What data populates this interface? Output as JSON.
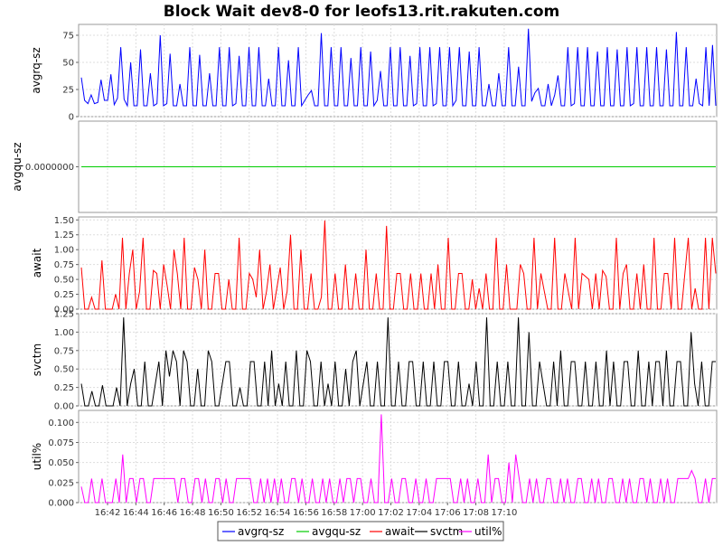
{
  "chart_data": {
    "type": "line",
    "title": "Block Wait dev8-0 for leofs13.rit.rakuten.com",
    "x_ticks": [
      "16:42",
      "16:44",
      "16:46",
      "16:48",
      "16:50",
      "16:52",
      "16:54",
      "16:56",
      "16:58",
      "17:00",
      "17:02",
      "17:04",
      "17:06",
      "17:08",
      "17:10"
    ],
    "legend_placement": "bottom-center",
    "grid": true,
    "legend": [
      {
        "name": "avgrq-sz",
        "color": "#0000ff"
      },
      {
        "name": "avgqu-sz",
        "color": "#00cc00"
      },
      {
        "name": "await",
        "color": "#ff0000"
      },
      {
        "name": "svctm",
        "color": "#000000"
      },
      {
        "name": "util%",
        "color": "#ff00ff"
      }
    ],
    "panels": [
      {
        "ylabel": "avgrq-sz",
        "color": "#0000ff",
        "ylim": [
          0,
          85
        ],
        "ticks": [
          {
            "v": 0,
            "label": "0"
          },
          {
            "v": 25,
            "label": "25"
          },
          {
            "v": 50,
            "label": "50"
          },
          {
            "v": 75,
            "label": "75"
          }
        ],
        "values": [
          36,
          15,
          12,
          20,
          12,
          13,
          34,
          15,
          15,
          39,
          11,
          17,
          64,
          16,
          10,
          50,
          10,
          10,
          62,
          10,
          10,
          40,
          10,
          12,
          75,
          10,
          12,
          58,
          10,
          10,
          30,
          10,
          10,
          64,
          10,
          10,
          57,
          10,
          10,
          40,
          10,
          10,
          64,
          10,
          10,
          64,
          10,
          12,
          56,
          10,
          10,
          64,
          10,
          10,
          64,
          10,
          10,
          35,
          10,
          10,
          64,
          10,
          10,
          52,
          10,
          10,
          64,
          10,
          15,
          20,
          24,
          10,
          10,
          77,
          10,
          10,
          64,
          10,
          10,
          64,
          10,
          10,
          54,
          10,
          10,
          64,
          10,
          10,
          60,
          10,
          15,
          42,
          10,
          10,
          64,
          10,
          10,
          64,
          10,
          10,
          56,
          10,
          12,
          64,
          10,
          10,
          64,
          10,
          12,
          64,
          10,
          10,
          64,
          10,
          15,
          64,
          10,
          10,
          60,
          10,
          10,
          64,
          10,
          10,
          30,
          10,
          10,
          40,
          10,
          10,
          64,
          10,
          10,
          46,
          10,
          10,
          81,
          14,
          22,
          26,
          10,
          10,
          30,
          10,
          20,
          38,
          10,
          10,
          64,
          10,
          12,
          64,
          10,
          10,
          64,
          10,
          10,
          60,
          10,
          10,
          64,
          10,
          10,
          62,
          10,
          10,
          64,
          10,
          12,
          64,
          10,
          10,
          64,
          10,
          10,
          64,
          10,
          10,
          62,
          10,
          10,
          78,
          10,
          10,
          64,
          10,
          10,
          35,
          12,
          10,
          64,
          10,
          66,
          10
        ],
        "label_offset": 55
      },
      {
        "ylabel": "avgqu-sz",
        "color": "#00cc00",
        "ylim": [
          -1,
          1
        ],
        "ticks": [
          {
            "v": 0,
            "label": "0.0000000"
          }
        ],
        "values": [
          0,
          0
        ],
        "label_offset": 76
      },
      {
        "ylabel": "await",
        "color": "#ff0000",
        "ylim": [
          0,
          1.55
        ],
        "ticks": [
          {
            "v": 0,
            "label": "0.00"
          },
          {
            "v": 0.25,
            "label": "0.25"
          },
          {
            "v": 0.5,
            "label": "0.50"
          },
          {
            "v": 0.75,
            "label": "0.75"
          },
          {
            "v": 1.0,
            "label": "1.00"
          },
          {
            "v": 1.25,
            "label": "1.25"
          },
          {
            "v": 1.5,
            "label": "1.50"
          }
        ],
        "values": [
          0.7,
          0.0,
          0.0,
          0.2,
          0.0,
          0.0,
          0.82,
          0.0,
          0.0,
          0.0,
          0.25,
          0.0,
          1.2,
          0.0,
          0.6,
          1.0,
          0.0,
          0.3,
          1.2,
          0.0,
          0.0,
          0.65,
          0.6,
          0.0,
          0.75,
          0.4,
          0.0,
          1.0,
          0.6,
          0.0,
          1.2,
          0.0,
          0.0,
          0.7,
          0.5,
          0.0,
          1.0,
          0.0,
          0.0,
          0.6,
          0.6,
          0.0,
          0.0,
          0.5,
          0.0,
          0.0,
          1.2,
          0.0,
          0.0,
          0.6,
          0.5,
          0.2,
          1.0,
          0.0,
          0.3,
          0.75,
          0.0,
          0.35,
          0.7,
          0.0,
          0.3,
          1.25,
          0.0,
          0.0,
          1.0,
          0.0,
          0.0,
          0.6,
          0.0,
          0.0,
          0.2,
          1.49,
          0.0,
          0.0,
          0.6,
          0.0,
          0.0,
          0.75,
          0.0,
          0.0,
          0.6,
          0.0,
          0.0,
          1.0,
          0.0,
          0.0,
          0.6,
          0.0,
          0.0,
          1.4,
          0.0,
          0.0,
          0.6,
          0.6,
          0.0,
          0.0,
          0.6,
          0.0,
          0.0,
          0.6,
          0.0,
          0.0,
          0.6,
          0.0,
          0.75,
          0.0,
          0.0,
          1.2,
          0.0,
          0.0,
          0.6,
          0.6,
          0.0,
          0.0,
          0.5,
          0.0,
          0.35,
          0.0,
          0.6,
          0.0,
          0.0,
          1.2,
          0.0,
          0.0,
          0.75,
          0.0,
          0.0,
          0.0,
          0.75,
          0.6,
          0.0,
          0.0,
          1.2,
          0.0,
          0.6,
          0.3,
          0.0,
          0.0,
          1.2,
          0.0,
          0.0,
          0.6,
          0.3,
          0.0,
          1.2,
          0.0,
          0.6,
          0.55,
          0.5,
          0.0,
          0.6,
          0.0,
          0.65,
          0.55,
          0.0,
          0.0,
          1.2,
          0.0,
          0.6,
          0.75,
          0.0,
          0.0,
          0.6,
          0.0,
          0.75,
          0.0,
          0.0,
          1.2,
          0.0,
          0.0,
          0.6,
          0.6,
          0.0,
          1.2,
          0.0,
          0.0,
          0.6,
          1.2,
          0.0,
          0.35,
          0.0,
          0.0,
          1.2,
          0.0,
          1.2,
          0.6
        ],
        "label_offset": 54
      },
      {
        "ylabel": "svctm",
        "color": "#000000",
        "ylim": [
          0,
          1.25
        ],
        "ticks": [
          {
            "v": 0,
            "label": "0.00"
          },
          {
            "v": 0.25,
            "label": "0.25"
          },
          {
            "v": 0.5,
            "label": "0.50"
          },
          {
            "v": 0.75,
            "label": "0.75"
          },
          {
            "v": 1.0,
            "label": "1.00"
          },
          {
            "v": 1.25,
            "label": "1.25"
          }
        ],
        "values": [
          0.3,
          0.0,
          0.0,
          0.2,
          0.0,
          0.0,
          0.28,
          0.0,
          0.0,
          0.0,
          0.25,
          0.0,
          1.2,
          0.0,
          0.3,
          0.5,
          0.0,
          0.0,
          0.6,
          0.0,
          0.0,
          0.3,
          0.6,
          0.0,
          0.75,
          0.4,
          0.75,
          0.6,
          0.0,
          0.75,
          0.6,
          0.0,
          0.0,
          0.5,
          0.0,
          0.0,
          0.75,
          0.6,
          0.0,
          0.0,
          0.3,
          0.6,
          0.6,
          0.0,
          0.0,
          0.25,
          0.0,
          0.0,
          0.6,
          0.6,
          0.0,
          0.0,
          0.6,
          0.0,
          0.75,
          0.0,
          0.3,
          0.0,
          0.6,
          0.0,
          0.0,
          0.75,
          0.0,
          0.0,
          0.75,
          0.6,
          0.0,
          0.0,
          0.6,
          0.0,
          0.3,
          0.0,
          0.6,
          0.0,
          0.0,
          0.5,
          0.0,
          0.6,
          0.75,
          0.0,
          0.3,
          0.6,
          0.0,
          0.0,
          0.6,
          0.0,
          0.0,
          1.2,
          0.0,
          0.0,
          0.6,
          0.0,
          0.0,
          0.6,
          0.6,
          0.0,
          0.0,
          0.6,
          0.0,
          0.0,
          0.6,
          0.0,
          0.0,
          0.6,
          0.6,
          0.0,
          0.0,
          0.6,
          0.0,
          0.0,
          0.3,
          0.0,
          0.6,
          0.0,
          0.0,
          1.2,
          0.0,
          0.0,
          0.6,
          0.0,
          0.0,
          0.6,
          0.0,
          0.0,
          1.2,
          0.0,
          0.0,
          1.0,
          0.0,
          0.0,
          0.6,
          0.3,
          0.0,
          0.0,
          0.6,
          0.0,
          0.75,
          0.0,
          0.0,
          0.6,
          0.6,
          0.0,
          0.0,
          0.6,
          0.0,
          0.0,
          0.6,
          0.0,
          0.0,
          0.75,
          0.0,
          0.6,
          0.0,
          0.0,
          0.6,
          0.6,
          0.0,
          0.0,
          0.75,
          0.0,
          0.0,
          0.6,
          0.0,
          0.6,
          0.6,
          0.0,
          0.75,
          0.0,
          0.0,
          0.6,
          0.6,
          0.0,
          0.0,
          1.0,
          0.3,
          0.0,
          0.6,
          0.0,
          0.0,
          0.6,
          0.6
        ],
        "label_offset": 54
      },
      {
        "ylabel": "util%",
        "color": "#ff00ff",
        "ylim": [
          0,
          0.115
        ],
        "ticks": [
          {
            "v": 0,
            "label": "0.000"
          },
          {
            "v": 0.025,
            "label": "0.025"
          },
          {
            "v": 0.05,
            "label": "0.050"
          },
          {
            "v": 0.075,
            "label": "0.075"
          },
          {
            "v": 0.1,
            "label": "0.100"
          }
        ],
        "values": [
          0.02,
          0.0,
          0.0,
          0.03,
          0.0,
          0.0,
          0.03,
          0.0,
          0.0,
          0.0,
          0.03,
          0.0,
          0.06,
          0.0,
          0.03,
          0.03,
          0.0,
          0.03,
          0.03,
          0.0,
          0.0,
          0.03,
          0.03,
          0.03,
          0.03,
          0.03,
          0.03,
          0.03,
          0.0,
          0.03,
          0.03,
          0.0,
          0.0,
          0.03,
          0.03,
          0.0,
          0.03,
          0.0,
          0.0,
          0.03,
          0.03,
          0.0,
          0.03,
          0.0,
          0.0,
          0.03,
          0.03,
          0.03,
          0.03,
          0.03,
          0.0,
          0.0,
          0.03,
          0.0,
          0.03,
          0.0,
          0.03,
          0.0,
          0.03,
          0.0,
          0.0,
          0.03,
          0.03,
          0.0,
          0.03,
          0.0,
          0.0,
          0.03,
          0.0,
          0.0,
          0.03,
          0.0,
          0.03,
          0.0,
          0.0,
          0.03,
          0.0,
          0.03,
          0.03,
          0.0,
          0.03,
          0.03,
          0.0,
          0.0,
          0.03,
          0.0,
          0.0,
          0.11,
          0.0,
          0.0,
          0.03,
          0.0,
          0.0,
          0.03,
          0.03,
          0.0,
          0.0,
          0.03,
          0.0,
          0.0,
          0.03,
          0.0,
          0.0,
          0.03,
          0.03,
          0.03,
          0.03,
          0.03,
          0.0,
          0.0,
          0.03,
          0.0,
          0.03,
          0.0,
          0.0,
          0.03,
          0.0,
          0.0,
          0.06,
          0.0,
          0.03,
          0.03,
          0.0,
          0.0,
          0.05,
          0.0,
          0.06,
          0.03,
          0.0,
          0.0,
          0.03,
          0.0,
          0.03,
          0.0,
          0.0,
          0.03,
          0.03,
          0.0,
          0.0,
          0.03,
          0.0,
          0.03,
          0.0,
          0.0,
          0.03,
          0.03,
          0.0,
          0.0,
          0.03,
          0.0,
          0.03,
          0.0,
          0.0,
          0.03,
          0.03,
          0.0,
          0.0,
          0.03,
          0.0,
          0.03,
          0.0,
          0.0,
          0.03,
          0.03,
          0.0,
          0.03,
          0.0,
          0.0,
          0.03,
          0.0,
          0.03,
          0.0,
          0.0,
          0.03,
          0.03,
          0.03,
          0.03,
          0.04,
          0.03,
          0.0,
          0.0,
          0.03,
          0.0,
          0.03,
          0.03
        ],
        "label_offset": 54
      }
    ]
  }
}
